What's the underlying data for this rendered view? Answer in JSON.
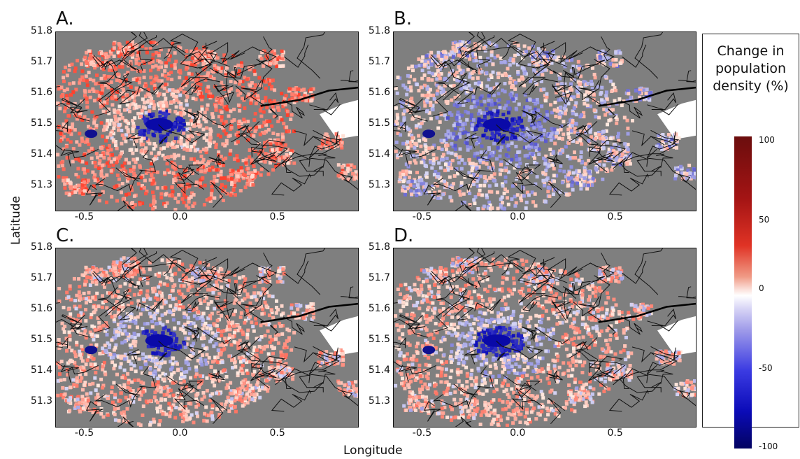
{
  "figure": {
    "panels": [
      {
        "id": "A",
        "label": "A.",
        "bias": 0.85
      },
      {
        "id": "B",
        "label": "B.",
        "bias": 0.22
      },
      {
        "id": "C",
        "label": "C.",
        "bias": 0.55
      },
      {
        "id": "D",
        "label": "D.",
        "bias": 0.5
      }
    ],
    "x_axis": {
      "title": "Longitude",
      "ticks": [
        "-0.5",
        "0.0",
        "0.5"
      ],
      "range": [
        -0.65,
        0.9
      ]
    },
    "y_axis": {
      "title": "Latitude",
      "ticks": [
        "51.8",
        "51.7",
        "51.6",
        "51.5",
        "51.4",
        "51.3"
      ],
      "range": [
        51.22,
        51.8
      ]
    },
    "legend": {
      "title_lines": [
        "Change in",
        "population",
        "density (%)"
      ],
      "ticks": [
        "100",
        "50",
        "0",
        "-50",
        "-100"
      ],
      "range": [
        -100,
        100
      ]
    },
    "colors": {
      "background": "#7f7f7f",
      "positive": "#e0402e",
      "negative": "#1c1cc8",
      "boundary": "#111111"
    }
  }
}
